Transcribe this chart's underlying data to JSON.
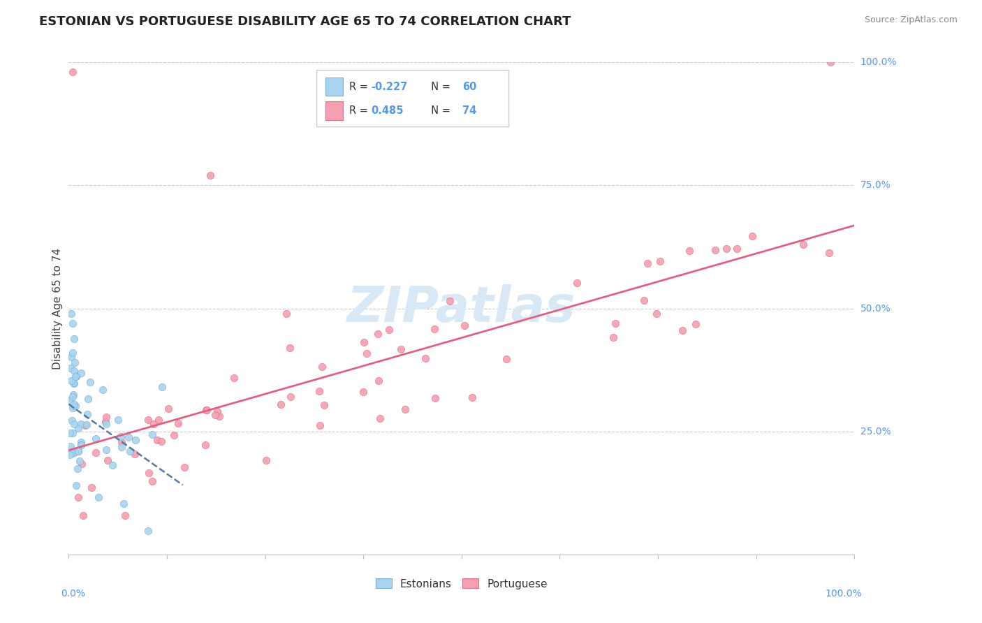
{
  "title": "ESTONIAN VS PORTUGUESE DISABILITY AGE 65 TO 74 CORRELATION CHART",
  "source": "Source: ZipAtlas.com",
  "ylabel": "Disability Age 65 to 74",
  "estonian_color": "#A8D4F0",
  "estonian_edge_color": "#7BAFD4",
  "portuguese_color": "#F4A0B0",
  "portuguese_edge_color": "#E07090",
  "estonian_line_color": "#5577AA",
  "portuguese_line_color": "#E06080",
  "right_label_color": "#5599EE",
  "watermark_color": "#D8E8F5",
  "title_color": "#222222",
  "source_color": "#888888",
  "ylabel_color": "#444444",
  "xlim": [
    0.0,
    1.0
  ],
  "ylim": [
    0.0,
    1.0
  ],
  "legend_r1": "R = -0.227",
  "legend_n1": "N = 60",
  "legend_r2": "R =  0.485",
  "legend_n2": "N = 74"
}
